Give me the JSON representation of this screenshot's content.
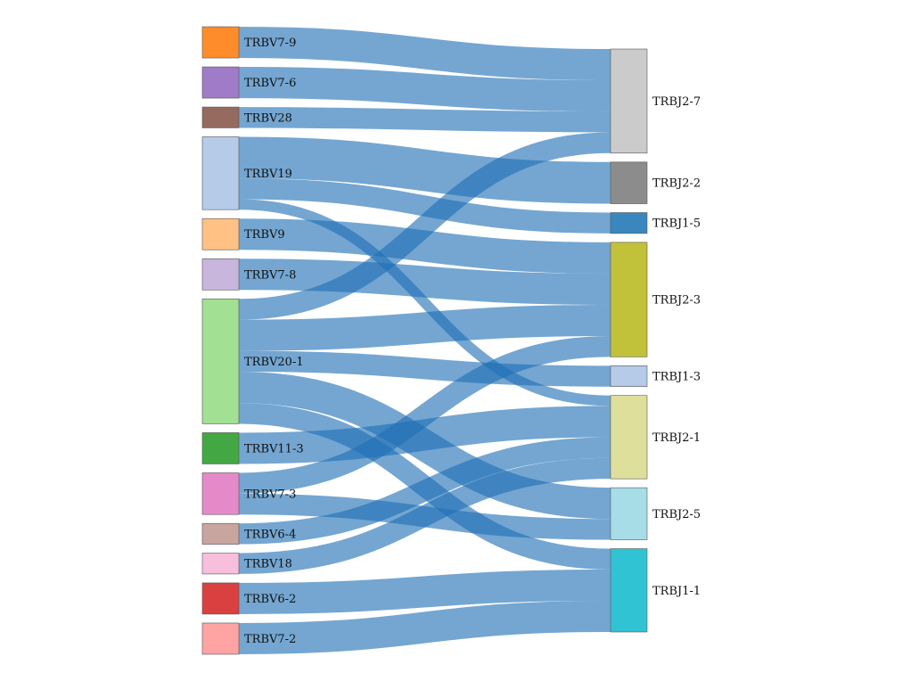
{
  "chart_data": {
    "type": "sankey",
    "link_color": "#1f6fb4",
    "sources": [
      {
        "id": "TRBV7-9",
        "label": "TRBV7-9",
        "color": "#ff8c2a"
      },
      {
        "id": "TRBV7-6",
        "label": "TRBV7-6",
        "color": "#a07bc7"
      },
      {
        "id": "TRBV28",
        "label": "TRBV28",
        "color": "#956a5f"
      },
      {
        "id": "TRBV19",
        "label": "TRBV19",
        "color": "#b6cbe8"
      },
      {
        "id": "TRBV9",
        "label": "TRBV9",
        "color": "#ffc184"
      },
      {
        "id": "TRBV7-8",
        "label": "TRBV7-8",
        "color": "#c9b6dc"
      },
      {
        "id": "TRBV20-1",
        "label": "TRBV20-1",
        "color": "#a2e093"
      },
      {
        "id": "TRBV11-3",
        "label": "TRBV11-3",
        "color": "#43a843"
      },
      {
        "id": "TRBV7-3",
        "label": "TRBV7-3",
        "color": "#e58ac9"
      },
      {
        "id": "TRBV6-4",
        "label": "TRBV6-4",
        "color": "#c9a59f"
      },
      {
        "id": "TRBV18",
        "label": "TRBV18",
        "color": "#f7bfdb"
      },
      {
        "id": "TRBV6-2",
        "label": "TRBV6-2",
        "color": "#d94040"
      },
      {
        "id": "TRBV7-2",
        "label": "TRBV7-2",
        "color": "#ffa3a3"
      }
    ],
    "targets": [
      {
        "id": "TRBJ2-7",
        "label": "TRBJ2-7",
        "color": "#cbcbcb"
      },
      {
        "id": "TRBJ2-2",
        "label": "TRBJ2-2",
        "color": "#8c8c8c"
      },
      {
        "id": "TRBJ1-5",
        "label": "TRBJ1-5",
        "color": "#3a87c0"
      },
      {
        "id": "TRBJ2-3",
        "label": "TRBJ2-3",
        "color": "#c2c13a"
      },
      {
        "id": "TRBJ1-3",
        "label": "TRBJ1-3",
        "color": "#b6cbe8"
      },
      {
        "id": "TRBJ2-1",
        "label": "TRBJ2-1",
        "color": "#dfdf9c"
      },
      {
        "id": "TRBJ2-5",
        "label": "TRBJ2-5",
        "color": "#a7dde6"
      },
      {
        "id": "TRBJ1-1",
        "label": "TRBJ1-1",
        "color": "#30c3d3"
      }
    ],
    "links": [
      {
        "source": "TRBV7-9",
        "target": "TRBJ2-7",
        "value": 3
      },
      {
        "source": "TRBV7-6",
        "target": "TRBJ2-7",
        "value": 3
      },
      {
        "source": "TRBV28",
        "target": "TRBJ2-7",
        "value": 2
      },
      {
        "source": "TRBV20-1",
        "target": "TRBJ2-7",
        "value": 2
      },
      {
        "source": "TRBV19",
        "target": "TRBJ2-2",
        "value": 4
      },
      {
        "source": "TRBV19",
        "target": "TRBJ1-5",
        "value": 2
      },
      {
        "source": "TRBV19",
        "target": "TRBJ2-1",
        "value": 1
      },
      {
        "source": "TRBV9",
        "target": "TRBJ2-3",
        "value": 3
      },
      {
        "source": "TRBV7-8",
        "target": "TRBJ2-3",
        "value": 3
      },
      {
        "source": "TRBV20-1",
        "target": "TRBJ2-3",
        "value": 3
      },
      {
        "source": "TRBV7-3",
        "target": "TRBJ2-3",
        "value": 2
      },
      {
        "source": "TRBV20-1",
        "target": "TRBJ1-3",
        "value": 2
      },
      {
        "source": "TRBV11-3",
        "target": "TRBJ2-1",
        "value": 3
      },
      {
        "source": "TRBV6-4",
        "target": "TRBJ2-1",
        "value": 2
      },
      {
        "source": "TRBV18",
        "target": "TRBJ2-1",
        "value": 2
      },
      {
        "source": "TRBV20-1",
        "target": "TRBJ2-5",
        "value": 3
      },
      {
        "source": "TRBV7-3",
        "target": "TRBJ2-5",
        "value": 2
      },
      {
        "source": "TRBV20-1",
        "target": "TRBJ1-1",
        "value": 2
      },
      {
        "source": "TRBV6-2",
        "target": "TRBJ1-1",
        "value": 3
      },
      {
        "source": "TRBV7-2",
        "target": "TRBJ1-1",
        "value": 3
      }
    ]
  }
}
